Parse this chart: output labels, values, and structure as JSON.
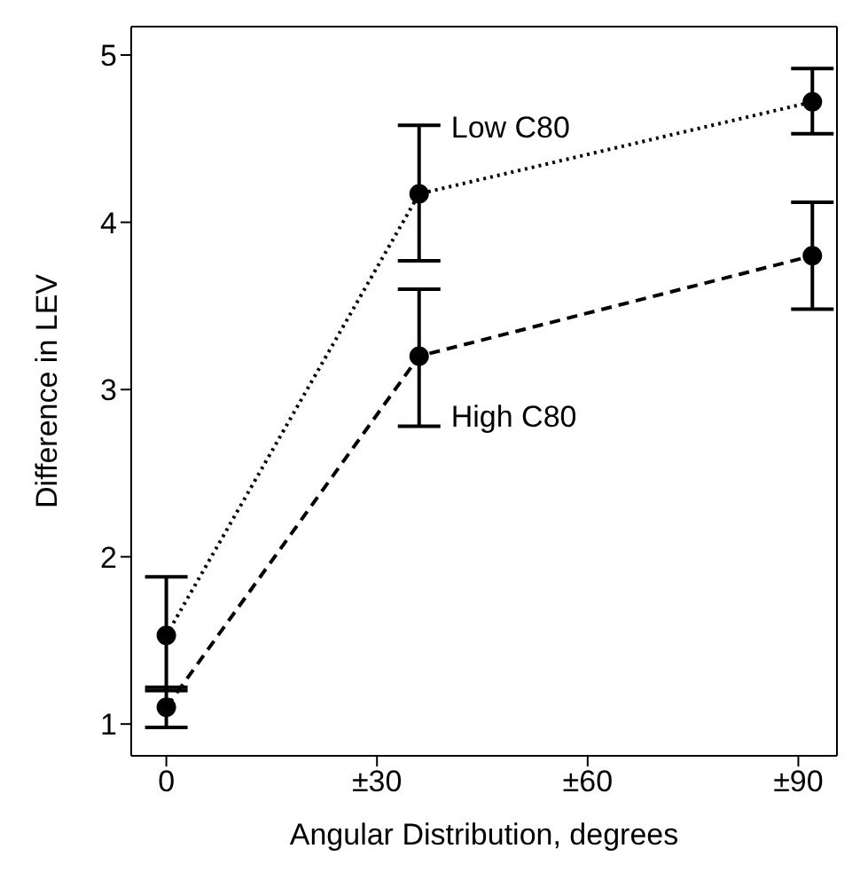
{
  "chart_data": {
    "type": "line",
    "xlabel": "Angular Distribution, degrees",
    "ylabel": "Difference in LEV",
    "xlim": [
      -5,
      95.5
    ],
    "xticks": [
      0,
      {
        "value": 30,
        "label": "±30"
      },
      {
        "value": 60,
        "label": "±60"
      },
      {
        "value": 90,
        "label": "±90"
      }
    ],
    "ylim": [
      0.81,
      5.17
    ],
    "yticks": [
      1,
      2,
      3,
      4,
      5
    ],
    "x": [
      0,
      36,
      92
    ],
    "series": [
      {
        "name": "Low C80",
        "color": "#000000",
        "line_style": "dotted",
        "values": [
          1.53,
          4.17,
          4.72
        ],
        "errors": [
          [
            1.2,
            1.88
          ],
          [
            3.77,
            4.58
          ],
          [
            4.53,
            4.92
          ]
        ]
      },
      {
        "name": "High C80",
        "color": "#000000",
        "line_style": "dashed",
        "values": [
          1.1,
          3.2,
          3.8
        ],
        "errors": [
          [
            0.98,
            1.22
          ],
          [
            2.78,
            3.6
          ],
          [
            3.48,
            4.12
          ]
        ]
      }
    ],
    "marker": "circle"
  }
}
